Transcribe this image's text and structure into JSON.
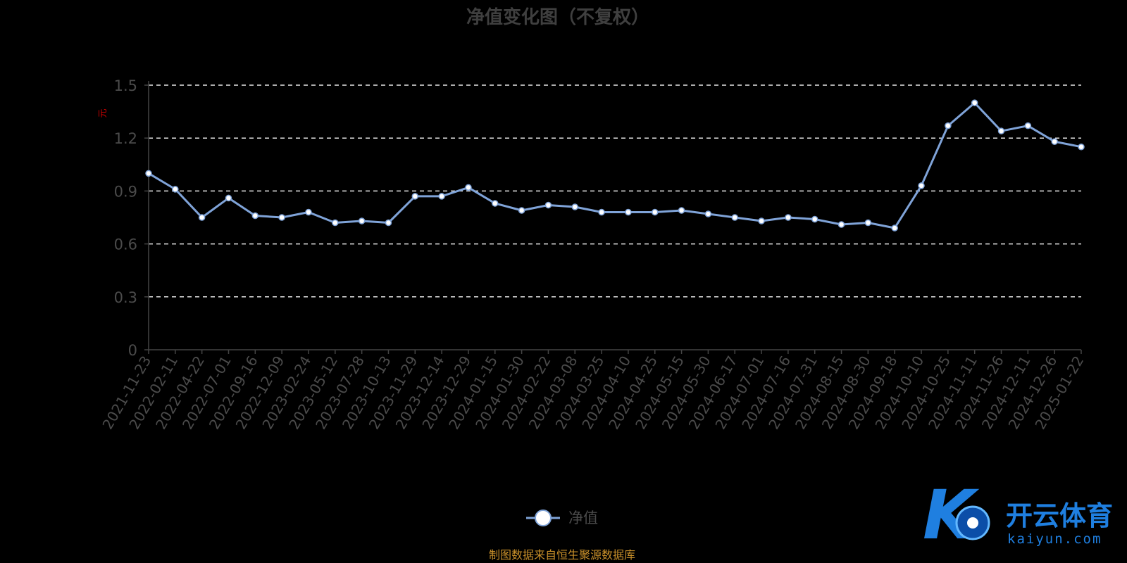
{
  "chart_data": {
    "type": "line",
    "title": "净值变化图（不复权）",
    "ylabel": "元",
    "ylim": [
      0,
      1.5
    ],
    "yticks": [
      "0",
      "0.3",
      "0.6",
      "0.9",
      "1.2",
      "1.5"
    ],
    "grid": true,
    "legend_position": "bottom-center",
    "categories": [
      "2021-11-23",
      "2022-02-11",
      "2022-04-22",
      "2022-07-01",
      "2022-09-16",
      "2022-12-09",
      "2023-02-24",
      "2023-05-12",
      "2023-07-28",
      "2023-10-13",
      "2023-11-29",
      "2023-12-14",
      "2023-12-29",
      "2024-01-15",
      "2024-01-30",
      "2024-02-22",
      "2024-03-08",
      "2024-03-25",
      "2024-04-10",
      "2024-04-25",
      "2024-05-15",
      "2024-05-30",
      "2024-06-17",
      "2024-07-01",
      "2024-07-16",
      "2024-07-31",
      "2024-08-15",
      "2024-08-30",
      "2024-09-18",
      "2024-10-10",
      "2024-10-25",
      "2024-11-11",
      "2024-11-26",
      "2024-12-11",
      "2024-12-26",
      "2025-01-22"
    ],
    "series": [
      {
        "name": "净值",
        "color": "#7fa3d8",
        "values": [
          1.0,
          0.91,
          0.75,
          0.86,
          0.76,
          0.75,
          0.78,
          0.72,
          0.73,
          0.72,
          0.87,
          0.87,
          0.92,
          0.83,
          0.79,
          0.82,
          0.81,
          0.78,
          0.78,
          0.78,
          0.79,
          0.77,
          0.75,
          0.73,
          0.75,
          0.74,
          0.71,
          0.72,
          0.69,
          0.93,
          1.27,
          1.4,
          1.24,
          1.27,
          1.18,
          1.15
        ]
      }
    ]
  },
  "source_note": "制图数据来自恒生聚源数据库",
  "watermark": {
    "brand": "开云体育",
    "url": "kaiyun.com",
    "color": "#1f7fe0"
  }
}
